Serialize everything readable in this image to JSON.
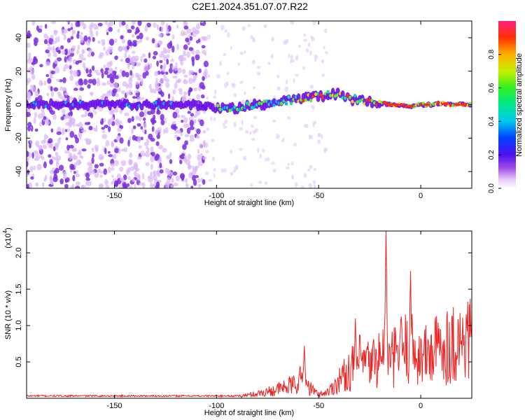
{
  "title": "C2E1.2024.351.07.07.R22",
  "chart_data": [
    {
      "type": "heatmap",
      "xlabel": "Height of straight line (km)",
      "ylabel": "Frequency (Hz)",
      "xlim": [
        -193,
        25
      ],
      "ylim": [
        -50,
        50
      ],
      "xticks": [
        -150,
        -100,
        -50,
        0
      ],
      "yticks": [
        -40,
        -20,
        0,
        20,
        40
      ],
      "colorbar": {
        "label": "Normalized spectral amplitude",
        "range": [
          0,
          1
        ],
        "ticks": [
          "0.0",
          "0.2",
          "0.4",
          "0.6",
          "0.8"
        ]
      },
      "ridge": {
        "x": [
          -193,
          -170,
          -150,
          -130,
          -110,
          -100,
          -90,
          -80,
          -70,
          -60,
          -50,
          -45,
          -40,
          -35,
          -30,
          -25,
          -20,
          -15,
          -10,
          -5,
          0,
          5,
          10,
          15,
          20,
          25
        ],
        "y": [
          0,
          0,
          0,
          0,
          0,
          -2,
          -2,
          0,
          2,
          3,
          5,
          6,
          7,
          4,
          3,
          2,
          1,
          0,
          0,
          -1,
          0,
          0,
          1,
          0,
          0,
          0
        ]
      },
      "grid": false
    },
    {
      "type": "line",
      "xlabel": "Height of straight line (km)",
      "ylabel": "SNR (10 * v/v)",
      "yscale_label": "(x10",
      "yscale_exp": "4",
      "yscale_close": ")",
      "xlim": [
        -193,
        25
      ],
      "ylim": [
        0,
        23000
      ],
      "xticks": [
        -150,
        -100,
        -50,
        0
      ],
      "yticks": [
        {
          "value": 5000,
          "label": "0.5"
        },
        {
          "value": 10000,
          "label": "1.0"
        },
        {
          "value": 15000,
          "label": "1.5"
        },
        {
          "value": 20000,
          "label": "2.0"
        }
      ],
      "color": "#ee2222",
      "series_envelope": {
        "x": [
          -193,
          -120,
          -90,
          -80,
          -70,
          -62,
          -58,
          -55,
          -50,
          -45,
          -40,
          -35,
          -30,
          -25,
          -20,
          -17,
          -15,
          -12,
          -10,
          -5,
          0,
          5,
          10,
          15,
          20,
          25
        ],
        "y": [
          300,
          300,
          400,
          1000,
          2000,
          3000,
          4500,
          2500,
          800,
          1500,
          4000,
          6000,
          8000,
          7500,
          9000,
          11000,
          8000,
          9500,
          11000,
          11000,
          9000,
          10000,
          11500,
          12000,
          12500,
          13500
        ]
      },
      "peaks": [
        {
          "x": -57,
          "y": 7200
        },
        {
          "x": -32,
          "y": 11000
        },
        {
          "x": -17,
          "y": 23000
        },
        {
          "x": -5,
          "y": 17500
        }
      ],
      "grid": false
    }
  ]
}
